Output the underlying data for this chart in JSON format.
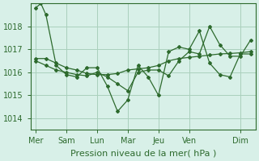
{
  "background_color": "#d8f0e8",
  "grid_color": "#aad0bc",
  "line_color": "#2d6a2d",
  "marker_color": "#2d6a2d",
  "xlabel": "Pression niveau de la mer( hPa )",
  "xlabel_fontsize": 8,
  "tick_fontsize": 7,
  "ylim": [
    1013.5,
    1019.0
  ],
  "yticks": [
    1014,
    1015,
    1016,
    1017,
    1018
  ],
  "day_labels": [
    "Mer",
    "Sam",
    "Lun",
    "Mar",
    "Jeu",
    "Ven",
    "Dim"
  ],
  "day_positions": [
    0,
    3,
    6,
    9,
    12,
    15,
    20
  ],
  "series1_x": [
    0,
    0.5,
    1,
    2,
    3,
    4,
    5,
    6,
    7,
    8,
    9,
    10,
    11,
    12,
    13,
    14,
    15,
    16,
    17,
    18,
    19,
    20,
    21
  ],
  "series1_y": [
    1018.8,
    1019.0,
    1018.5,
    1016.3,
    1015.9,
    1015.8,
    1016.2,
    1016.2,
    1015.4,
    1014.3,
    1014.8,
    1016.3,
    1015.8,
    1015.0,
    1016.9,
    1017.1,
    1017.0,
    1017.8,
    1016.4,
    1015.9,
    1015.8,
    1016.8,
    1016.8
  ],
  "series2_x": [
    0,
    1,
    2,
    3,
    4,
    5,
    6,
    7,
    8,
    9,
    10,
    11,
    12,
    13,
    14,
    15,
    16,
    17,
    18,
    19,
    20,
    21
  ],
  "series2_y": [
    1016.6,
    1016.6,
    1016.4,
    1016.2,
    1016.1,
    1015.95,
    1015.9,
    1015.9,
    1015.95,
    1016.1,
    1016.15,
    1016.2,
    1016.3,
    1016.5,
    1016.6,
    1016.65,
    1016.7,
    1016.75,
    1016.8,
    1016.82,
    1016.85,
    1016.9
  ],
  "series3_x": [
    0,
    1,
    2,
    3,
    4,
    5,
    6,
    7,
    8,
    9,
    10,
    11,
    12,
    13,
    14,
    15,
    16,
    17,
    18,
    19,
    20,
    21
  ],
  "series3_y": [
    1016.5,
    1016.3,
    1016.1,
    1016.0,
    1015.9,
    1015.85,
    1016.0,
    1015.8,
    1015.5,
    1015.2,
    1016.0,
    1016.1,
    1016.1,
    1015.85,
    1016.5,
    1016.9,
    1016.8,
    1018.0,
    1017.2,
    1016.7,
    1016.7,
    1017.4
  ],
  "figsize": [
    3.2,
    2.0
  ],
  "dpi": 100
}
